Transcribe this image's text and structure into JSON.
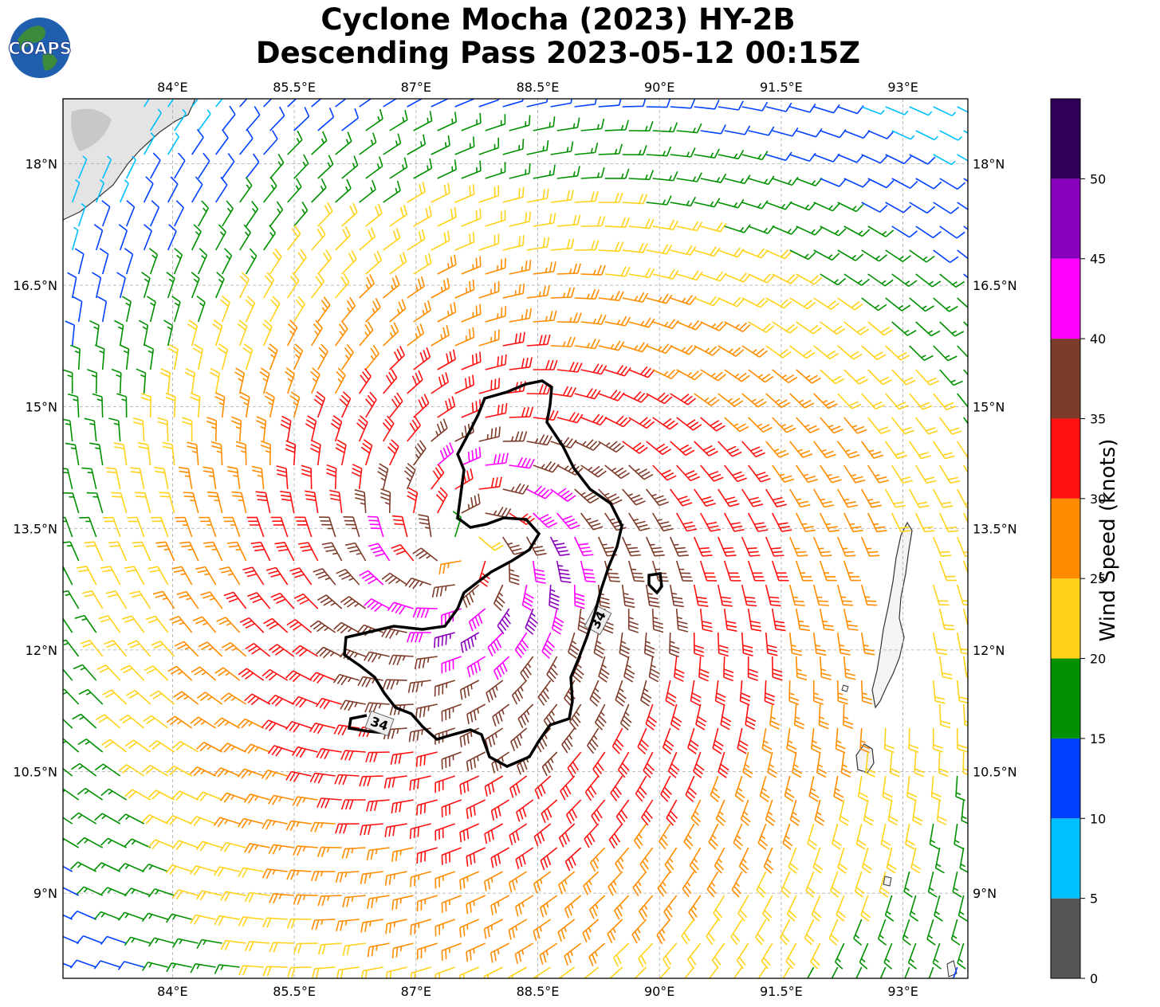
{
  "title": {
    "line1": "Cyclone Mocha (2023) HY-2B",
    "line2": "Descending Pass 2023-05-12 00:15Z"
  },
  "logo": {
    "text": "COAPS",
    "icon": "globe-icon"
  },
  "map": {
    "lon_range": [
      82.65,
      93.8
    ],
    "lat_range": [
      7.95,
      18.8
    ],
    "lon_ticks": [
      "84°E",
      "85.5°E",
      "87°E",
      "88.5°E",
      "90°E",
      "91.5°E",
      "93°E"
    ],
    "lon_values": [
      84,
      85.5,
      87,
      88.5,
      90,
      91.5,
      93
    ],
    "lat_ticks": [
      "9°N",
      "10.5°N",
      "12°N",
      "13.5°N",
      "15°N",
      "16.5°N",
      "18°N"
    ],
    "lat_values": [
      9,
      10.5,
      12,
      13.5,
      15,
      16.5,
      18
    ],
    "gridlines": true,
    "storm_center": [
      87.6,
      13.3
    ],
    "contour_label": "34",
    "contour_value_knots": 34
  },
  "colorbar": {
    "label": "Wind Speed (knots)",
    "ticks": [
      "0",
      "5",
      "10",
      "15",
      "20",
      "25",
      "30",
      "35",
      "40",
      "45",
      "50"
    ],
    "bins": [
      {
        "min": 0,
        "max": 5,
        "color": "#555555"
      },
      {
        "min": 5,
        "max": 10,
        "color": "#00bfff"
      },
      {
        "min": 10,
        "max": 15,
        "color": "#0040ff"
      },
      {
        "min": 15,
        "max": 20,
        "color": "#009000"
      },
      {
        "min": 20,
        "max": 25,
        "color": "#ffd21a"
      },
      {
        "min": 25,
        "max": 30,
        "color": "#ff8c00"
      },
      {
        "min": 30,
        "max": 35,
        "color": "#ff1010"
      },
      {
        "min": 35,
        "max": 40,
        "color": "#7d3b2a"
      },
      {
        "min": 40,
        "max": 45,
        "color": "#ff00ff"
      },
      {
        "min": 45,
        "max": 50,
        "color": "#8800bb"
      },
      {
        "min": 50,
        "max": 55,
        "color": "#2e0057"
      }
    ]
  }
}
